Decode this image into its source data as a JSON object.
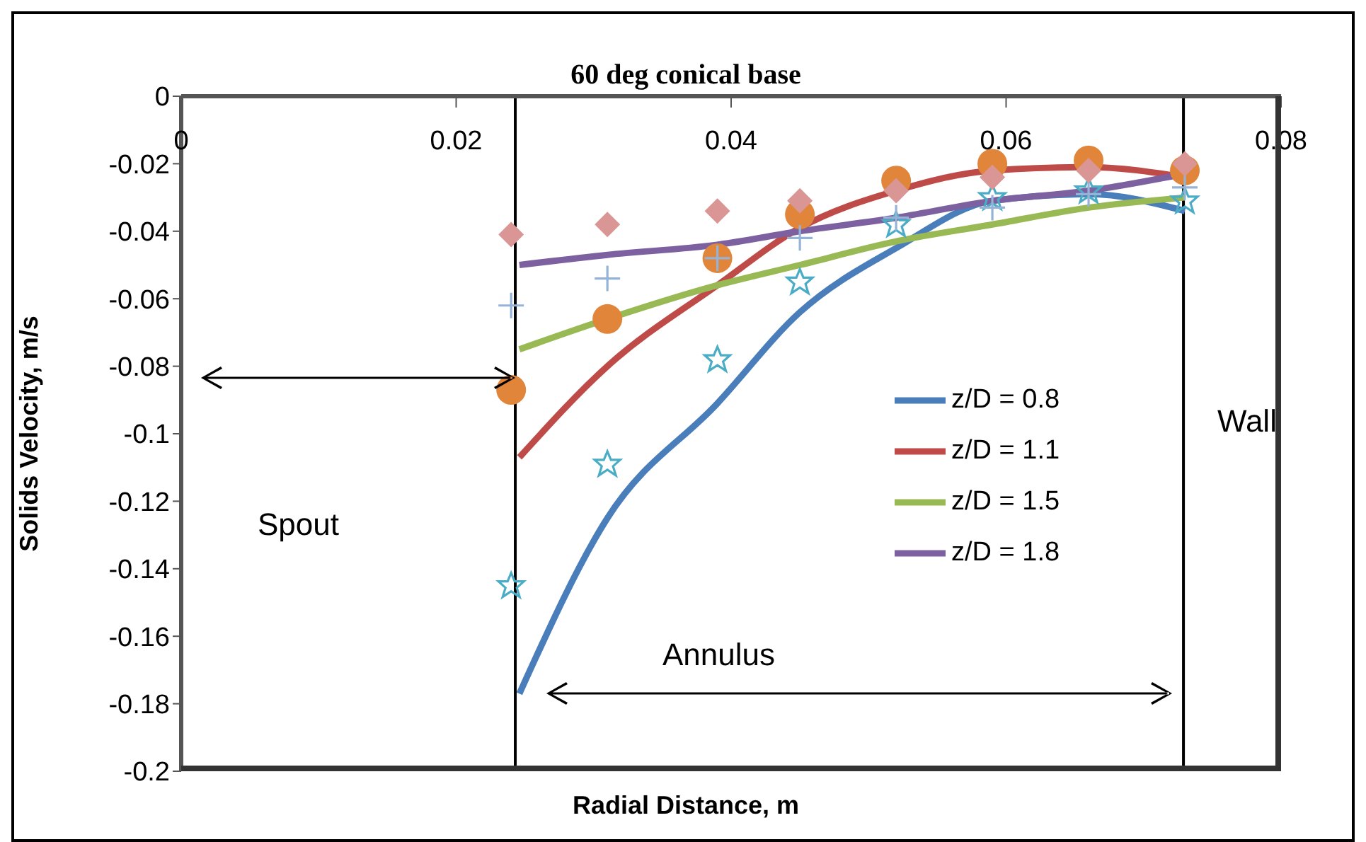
{
  "chart_data": {
    "type": "line",
    "title": "60 deg conical base",
    "xlabel": "Radial Distance, m",
    "ylabel": "Solids Velocity, m/s",
    "xlim": [
      0,
      0.08
    ],
    "xticks": [
      0,
      0.02,
      0.04,
      0.06,
      0.08
    ],
    "ylim": [
      -0.2,
      0
    ],
    "yticks": [
      -0.2,
      -0.18,
      -0.16,
      -0.14,
      -0.12,
      -0.1,
      -0.08,
      -0.06,
      -0.04,
      -0.02,
      0
    ],
    "grid": false,
    "legend": "right",
    "marker": "none",
    "series": [
      {
        "name": "z/D = 0.8",
        "color": "#4a7ebb",
        "x": [
          0.0246,
          0.031,
          0.039,
          0.045,
          0.052,
          0.059,
          0.066,
          0.073
        ],
        "values": [
          -0.177,
          -0.125,
          -0.091,
          -0.064,
          -0.045,
          -0.031,
          -0.029,
          -0.034
        ]
      },
      {
        "name": "z/D = 1.1",
        "color": "#be4b48",
        "x": [
          0.0246,
          0.031,
          0.039,
          0.045,
          0.052,
          0.059,
          0.066,
          0.073
        ],
        "values": [
          -0.107,
          -0.08,
          -0.056,
          -0.039,
          -0.028,
          -0.022,
          -0.021,
          -0.024
        ]
      },
      {
        "name": "z/D = 1.5",
        "color": "#98b954",
        "x": [
          0.0246,
          0.031,
          0.039,
          0.045,
          0.052,
          0.059,
          0.066,
          0.073
        ],
        "values": [
          -0.075,
          -0.066,
          -0.056,
          -0.05,
          -0.043,
          -0.038,
          -0.033,
          -0.03
        ]
      },
      {
        "name": "z/D = 1.8",
        "color": "#7d60a0",
        "x": [
          0.0246,
          0.031,
          0.039,
          0.045,
          0.052,
          0.059,
          0.066,
          0.073
        ],
        "values": [
          -0.05,
          -0.047,
          -0.044,
          -0.04,
          -0.036,
          -0.031,
          -0.028,
          -0.023
        ]
      },
      {
        "type": "scatter",
        "marker": "star",
        "color": "#4bacc6",
        "x": [
          0.024,
          0.031,
          0.039,
          0.045,
          0.052,
          0.059,
          0.066,
          0.073
        ],
        "values": [
          -0.145,
          -0.109,
          -0.078,
          -0.055,
          -0.038,
          -0.03,
          -0.028,
          -0.031
        ]
      },
      {
        "type": "scatter",
        "marker": "circle",
        "color": "#e0853a",
        "x": [
          0.024,
          0.031,
          0.039,
          0.045,
          0.052,
          0.059,
          0.066,
          0.073
        ],
        "values": [
          -0.087,
          -0.066,
          -0.048,
          -0.035,
          -0.025,
          -0.02,
          -0.019,
          -0.022
        ]
      },
      {
        "type": "scatter",
        "marker": "cross",
        "color": "#95b3d7",
        "x": [
          0.024,
          0.031,
          0.039,
          0.045,
          0.052,
          0.059,
          0.066,
          0.073
        ],
        "values": [
          -0.062,
          -0.054,
          -0.048,
          -0.042,
          -0.036,
          -0.033,
          -0.029,
          -0.027
        ]
      },
      {
        "type": "scatter",
        "marker": "diamond",
        "color": "#d99694",
        "x": [
          0.024,
          0.031,
          0.039,
          0.045,
          0.052,
          0.059,
          0.066,
          0.073
        ],
        "values": [
          -0.041,
          -0.038,
          -0.034,
          -0.031,
          -0.028,
          -0.024,
          -0.022,
          -0.02
        ]
      }
    ],
    "ref_lines": [
      {
        "axis": "x",
        "value": 0.0243,
        "color": "#000000"
      },
      {
        "axis": "x",
        "value": 0.0729,
        "color": "#000000"
      }
    ],
    "annotations": [
      "Spout",
      "Annulus",
      "Wall"
    ]
  }
}
